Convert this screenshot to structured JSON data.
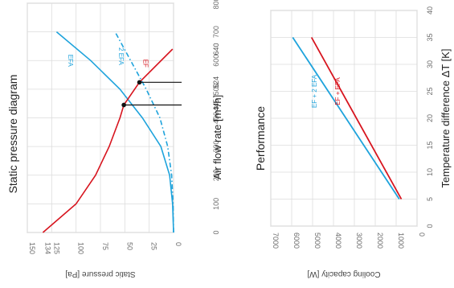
{
  "colors": {
    "efa": "#1ea3dc",
    "ef": "#d7141e",
    "grid": "#dcdcdc",
    "frame": "#b4b4b4"
  },
  "chart_data": [
    {
      "type": "line",
      "title": "Static pressure diagram",
      "xlabel": "Air flow rate [m³/h]",
      "ylabel": "Static pressure [Pa]",
      "xlim": [
        0,
        800
      ],
      "ylim": [
        0,
        150
      ],
      "x_ticks": [
        "0",
        "100",
        "200",
        "300",
        "400",
        "500",
        "600",
        "700",
        "800"
      ],
      "y_ticks": [
        "0",
        "25",
        "50",
        "75",
        "100",
        "125",
        "150"
      ],
      "extra_y_tick": "134",
      "grid": true,
      "series": [
        {
          "name": "EFA",
          "color": "#1ea3dc",
          "dash": "solid",
          "points": [
            [
              0,
              0
            ],
            [
              100,
              1
            ],
            [
              200,
              4
            ],
            [
              300,
              13
            ],
            [
              400,
              32
            ],
            [
              500,
              55
            ],
            [
              600,
              85
            ],
            [
              700,
              120
            ]
          ]
        },
        {
          "name": "2 EFA",
          "color": "#1ea3dc",
          "dash": "dashdot",
          "points": [
            [
              0,
              0
            ],
            [
              100,
              0.5
            ],
            [
              200,
              2
            ],
            [
              300,
              6
            ],
            [
              400,
              14
            ],
            [
              500,
              28
            ],
            [
              600,
              44
            ],
            [
              700,
              60
            ]
          ]
        },
        {
          "name": "EF",
          "color": "#d7141e",
          "dash": "solid",
          "points": [
            [
              0,
              134
            ],
            [
              100,
              100
            ],
            [
              200,
              80
            ],
            [
              300,
              66
            ],
            [
              400,
              55
            ],
            [
              445,
              51
            ],
            [
              524,
              35
            ],
            [
              640,
              1
            ]
          ]
        }
      ],
      "annotations": {
        "x_markers": [
          "445",
          "524",
          "640"
        ],
        "operating_points": [
          {
            "x": 445,
            "y": 51
          },
          {
            "x": 524,
            "y": 35
          }
        ]
      }
    },
    {
      "type": "line",
      "title": "Performance",
      "xlabel": "Temperature difference ΔT [K]",
      "ylabel": "Cooling capacity [W]",
      "xlim": [
        0,
        40
      ],
      "ylim": [
        0,
        7000
      ],
      "x_ticks": [
        "0",
        "5",
        "10",
        "15",
        "20",
        "25",
        "30",
        "35",
        "40"
      ],
      "y_ticks": [
        "0",
        "1000",
        "2000",
        "3000",
        "4000",
        "5000",
        "6000",
        "7000"
      ],
      "grid": true,
      "series": [
        {
          "name": "EF + 2 EFA",
          "color": "#1ea3dc",
          "points": [
            [
              5,
              850
            ],
            [
              35,
              5950
            ]
          ]
        },
        {
          "name": "EF + EFA",
          "color": "#d7141e",
          "points": [
            [
              5,
              750
            ],
            [
              35,
              5050
            ]
          ]
        }
      ]
    }
  ]
}
